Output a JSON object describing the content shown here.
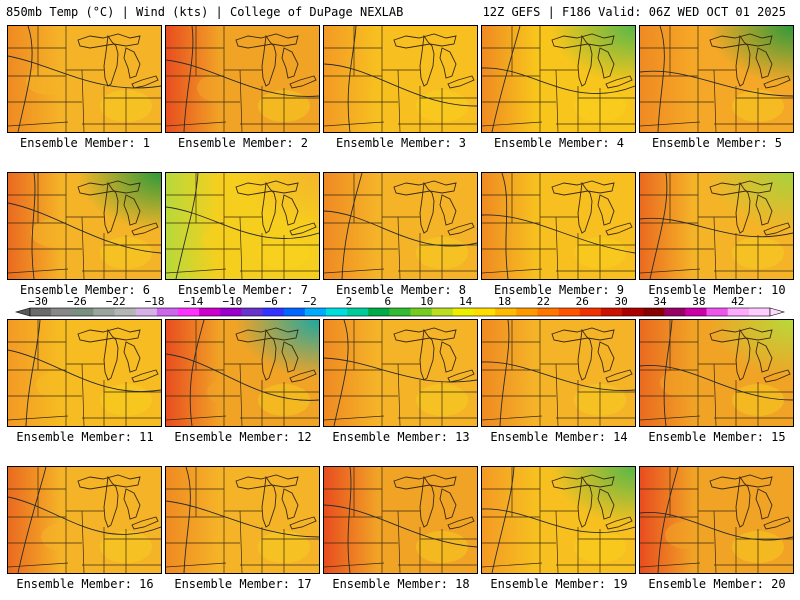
{
  "header": {
    "left": "850mb Temp (°C) | Wind (kts) | College of DuPage NEXLAB",
    "right": "12Z GEFS | F186 Valid: 06Z WED OCT 01 2025"
  },
  "members": [
    {
      "label": "Ensemble Member: 1",
      "base": "#f5b428",
      "west": "#ef8a22",
      "ne": null
    },
    {
      "label": "Ensemble Member: 2",
      "base": "#f1a326",
      "west": "#e84d1f",
      "ne": null
    },
    {
      "label": "Ensemble Member: 3",
      "base": "#f7c020",
      "west": "#f39a25",
      "ne": null
    },
    {
      "label": "Ensemble Member: 4",
      "base": "#f8c51c",
      "west": "#ef8a22",
      "ne": "#58b848"
    },
    {
      "label": "Ensemble Member: 5",
      "base": "#f5a827",
      "west": "#ef8a22",
      "ne": "#2f9a3a"
    },
    {
      "label": "Ensemble Member: 6",
      "base": "#f5b428",
      "west": "#ea6a20",
      "ne": "#2f9a3a"
    },
    {
      "label": "Ensemble Member: 7",
      "base": "#f6cf1e",
      "west": "#b8d93a",
      "ne": "#f4b52a"
    },
    {
      "label": "Ensemble Member: 8",
      "base": "#f5b428",
      "west": "#ef8a22",
      "ne": null
    },
    {
      "label": "Ensemble Member: 9",
      "base": "#f7c020",
      "west": "#ef8a22",
      "ne": null
    },
    {
      "label": "Ensemble Member: 10",
      "base": "#f5b428",
      "west": "#ea6a20",
      "ne": "#a7d23c"
    },
    {
      "label": "Ensemble Member: 11",
      "base": "#f6bc22",
      "west": "#f39a25",
      "ne": null
    },
    {
      "label": "Ensemble Member: 12",
      "base": "#f1a326",
      "west": "#e84d1f",
      "ne": "#1fa8a0"
    },
    {
      "label": "Ensemble Member: 13",
      "base": "#f5b428",
      "west": "#ef8a22",
      "ne": null
    },
    {
      "label": "Ensemble Member: 14",
      "base": "#f5b428",
      "west": "#ef8a22",
      "ne": null
    },
    {
      "label": "Ensemble Member: 15",
      "base": "#f1a326",
      "west": "#ea6a20",
      "ne": "#b8d93a"
    },
    {
      "label": "Ensemble Member: 16",
      "base": "#f5b428",
      "west": "#ea6a20",
      "ne": null
    },
    {
      "label": "Ensemble Member: 17",
      "base": "#f5b428",
      "west": "#ef8a22",
      "ne": null
    },
    {
      "label": "Ensemble Member: 18",
      "base": "#f1a326",
      "west": "#e84d1f",
      "ne": null
    },
    {
      "label": "Ensemble Member: 19",
      "base": "#f7c020",
      "west": "#f39a25",
      "ne": "#58b848"
    },
    {
      "label": "Ensemble Member: 20",
      "base": "#f1a326",
      "west": "#e84d1f",
      "ne": null
    }
  ],
  "colorbar": {
    "labels": [
      "−30",
      "−26",
      "−22",
      "−18",
      "−14",
      "−10",
      "−6",
      "−2",
      "2",
      "6",
      "10",
      "14",
      "18",
      "22",
      "26",
      "30",
      "34",
      "38",
      "42"
    ],
    "colors": [
      "#6b6b6b",
      "#888888",
      "#7b8f80",
      "#9aa59e",
      "#b5b5b5",
      "#d8b0e8",
      "#cc66ee",
      "#ff33ff",
      "#cc00cc",
      "#9900cc",
      "#6633cc",
      "#3333ff",
      "#0066ff",
      "#00aaff",
      "#00dddd",
      "#00cc99",
      "#00aa44",
      "#33bb33",
      "#77cc22",
      "#bbdd22",
      "#eeee00",
      "#ffdd00",
      "#ffbb00",
      "#ff9900",
      "#ff7700",
      "#ff5500",
      "#ee3300",
      "#cc1100",
      "#aa0000",
      "#880000",
      "#990066",
      "#cc00aa",
      "#ee55ee",
      "#ffaaff",
      "#ffccff"
    ]
  }
}
